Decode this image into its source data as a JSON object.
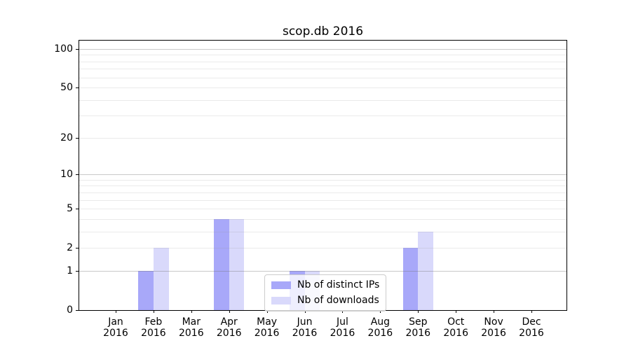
{
  "chart_data": {
    "type": "bar",
    "title": "scop.db 2016",
    "categories": [
      "Jan 2016",
      "Feb 2016",
      "Mar 2016",
      "Apr 2016",
      "May 2016",
      "Jun 2016",
      "Jul 2016",
      "Aug 2016",
      "Sep 2016",
      "Oct 2016",
      "Nov 2016",
      "Dec 2016"
    ],
    "x_tick_lines": [
      [
        "Jan",
        "2016"
      ],
      [
        "Feb",
        "2016"
      ],
      [
        "Mar",
        "2016"
      ],
      [
        "Apr",
        "2016"
      ],
      [
        "May",
        "2016"
      ],
      [
        "Jun",
        "2016"
      ],
      [
        "Jul",
        "2016"
      ],
      [
        "Aug",
        "2016"
      ],
      [
        "Sep",
        "2016"
      ],
      [
        "Oct",
        "2016"
      ],
      [
        "Nov",
        "2016"
      ],
      [
        "Dec",
        "2016"
      ]
    ],
    "series": [
      {
        "name": "Nb of distinct IPs",
        "color": "#a8a8f9",
        "values": [
          0,
          1,
          0,
          4,
          0,
          1,
          0,
          0,
          2,
          0,
          0,
          0
        ]
      },
      {
        "name": "Nb of downloads",
        "color": "#d9d9fb",
        "values": [
          0,
          2,
          0,
          4,
          0,
          1,
          0,
          0,
          3,
          0,
          0,
          0
        ]
      }
    ],
    "yscale": "log1p",
    "ylim": [
      0,
      116
    ],
    "y_major_ticks": [
      0,
      1,
      2,
      5,
      10,
      20,
      50,
      100
    ],
    "y_decade_gridlines": [
      1,
      10,
      100
    ],
    "y_minor_gridlines": [
      2,
      3,
      4,
      5,
      6,
      7,
      8,
      9,
      20,
      30,
      40,
      50,
      60,
      70,
      80,
      90
    ],
    "grid": true,
    "legend": {
      "position": "lower center"
    }
  }
}
